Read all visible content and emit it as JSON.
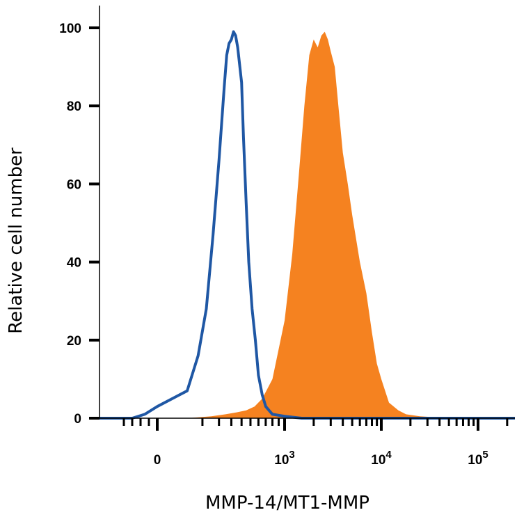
{
  "chart_data": {
    "type": "area",
    "xlabel": "MMP-14/MT1-MMP",
    "ylabel": "Relative cell number",
    "x_scale": "biexponential",
    "xlim": [
      -1000,
      150000
    ],
    "ylim": [
      0,
      100
    ],
    "grid": false,
    "legend": "none",
    "yticks": [
      {
        "value": 0,
        "label": "0"
      },
      {
        "value": 20,
        "label": "20"
      },
      {
        "value": 40,
        "label": "40"
      },
      {
        "value": 60,
        "label": "60"
      },
      {
        "value": 80,
        "label": "80"
      },
      {
        "value": 100,
        "label": "100"
      }
    ],
    "xticks": [
      {
        "value": 0,
        "base": "0",
        "exp": ""
      },
      {
        "value": 1000,
        "base": "10",
        "exp": "3"
      },
      {
        "value": 10000,
        "base": "10",
        "exp": "4"
      },
      {
        "value": 100000,
        "base": "10",
        "exp": "5"
      }
    ],
    "series": [
      {
        "style": "filled",
        "color": "#f58220",
        "x": [
          40,
          150,
          250,
          350,
          450,
          550,
          650,
          800,
          1000,
          1200,
          1400,
          1600,
          1800,
          2000,
          2200,
          2400,
          2600,
          2800,
          3000,
          3300,
          3600,
          4000,
          4500,
          5000,
          6000,
          7000,
          8000,
          9000,
          10000,
          12000,
          15000,
          18000,
          25000,
          50000
        ],
        "y": [
          0,
          0.5,
          1,
          1.5,
          2,
          3,
          5,
          10,
          25,
          42,
          62,
          80,
          93,
          97,
          95,
          98,
          99,
          97,
          94,
          90,
          80,
          68,
          60,
          52,
          40,
          32,
          22,
          14,
          10,
          4,
          2,
          1,
          0.5,
          0
        ]
      },
      {
        "style": "outline",
        "color": "#1f57a4",
        "x": [
          -300,
          -150,
          0,
          40,
          80,
          120,
          160,
          200,
          240,
          260,
          280,
          300,
          320,
          340,
          360,
          400,
          420,
          450,
          480,
          520,
          560,
          600,
          650,
          700,
          800,
          1000,
          1500,
          5000,
          50000
        ],
        "y": [
          0,
          1,
          3,
          7,
          16,
          28,
          47,
          66,
          85,
          93,
          96,
          97,
          99,
          98,
          95,
          86,
          72,
          55,
          40,
          28,
          20,
          11,
          6,
          3,
          1,
          0.5,
          0,
          0,
          0
        ]
      }
    ]
  }
}
